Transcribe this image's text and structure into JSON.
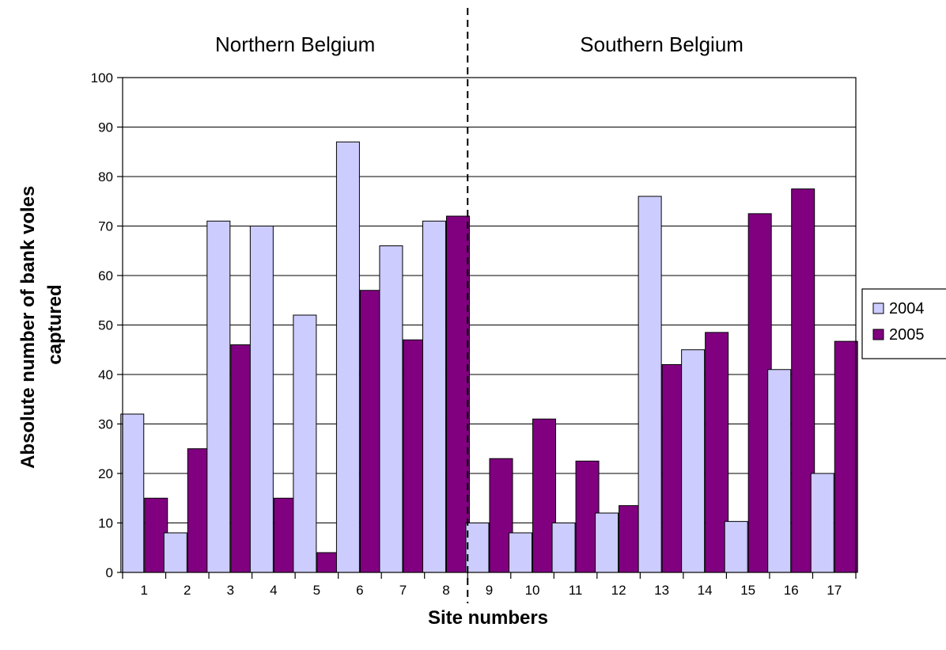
{
  "chart_data": {
    "type": "bar",
    "categories": [
      "1",
      "2",
      "3",
      "4",
      "5",
      "6",
      "7",
      "8",
      "9",
      "10",
      "11",
      "12",
      "13",
      "14",
      "15",
      "16",
      "17"
    ],
    "series": [
      {
        "name": "2004",
        "color": "#ccccff",
        "values": [
          32,
          8,
          71,
          70,
          52,
          87,
          66,
          71,
          10,
          8,
          10,
          12,
          76,
          45,
          10.3,
          41,
          20
        ]
      },
      {
        "name": "2005",
        "color": "#800080",
        "values": [
          15,
          25,
          46,
          15,
          4,
          57,
          47,
          72,
          23,
          31,
          22.5,
          13.5,
          42,
          48.5,
          72.5,
          77.5,
          46.7
        ]
      }
    ],
    "xlabel": "Site numbers",
    "ylabel_line1": "Absolute number of bank voles",
    "ylabel_line2": "captured",
    "ylim": [
      0,
      100
    ],
    "yticks": [
      0,
      10,
      20,
      30,
      40,
      50,
      60,
      70,
      80,
      90,
      100
    ],
    "grid": true,
    "legend_position": "right",
    "regions": [
      {
        "label": "Northern Belgium",
        "start_category": "1",
        "end_category": "8"
      },
      {
        "label": "Southern Belgium",
        "start_category": "9",
        "end_category": "17"
      }
    ],
    "divider_after_category": "8"
  }
}
